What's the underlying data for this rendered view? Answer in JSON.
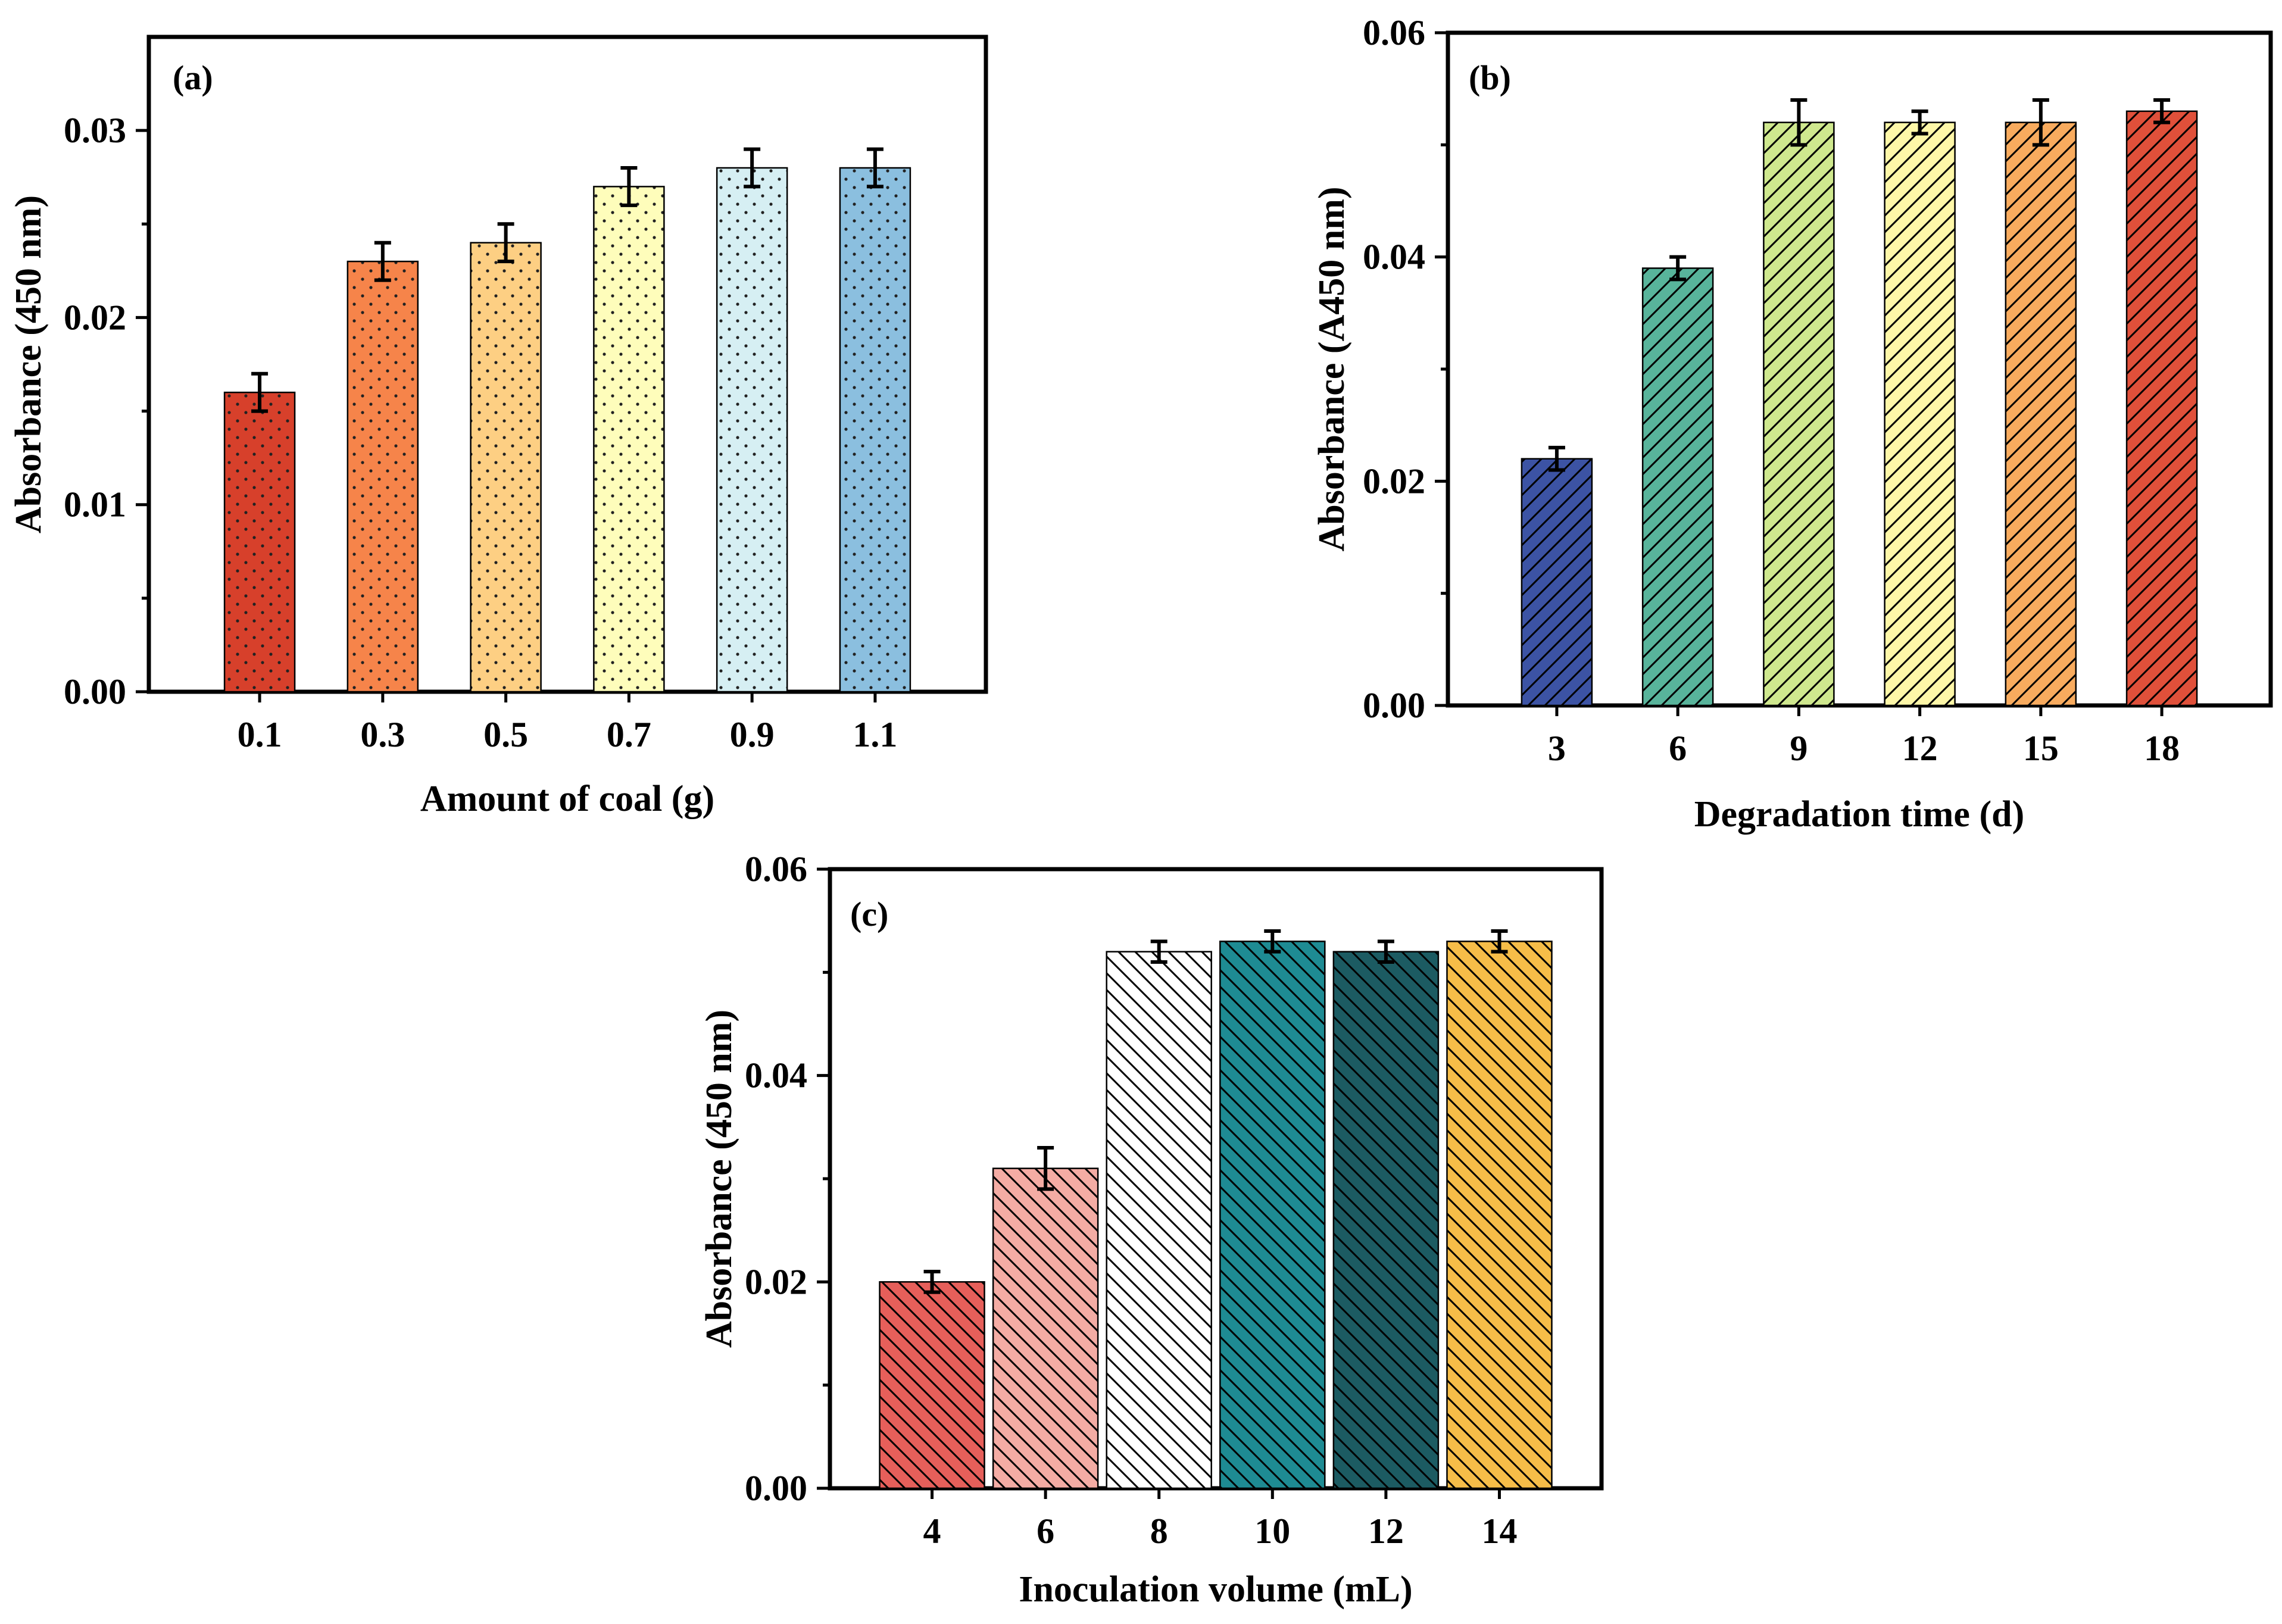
{
  "figure": {
    "charts": [
      {
        "id": "a",
        "panel_label": "(a)",
        "pattern": "dots",
        "xlabel": "Amount of coal (g)",
        "ylabel": "Absorbance (450 nm)"
      },
      {
        "id": "b",
        "panel_label": "(b)",
        "pattern": "hatch",
        "xlabel": "Degradation time (d)",
        "ylabel": "Absorbance (A450 nm)"
      },
      {
        "id": "c",
        "panel_label": "(c)",
        "pattern": "hatch-back",
        "xlabel": "Inoculation volume (mL)",
        "ylabel": "Absorbance (450 nm)"
      }
    ]
  },
  "chart_data": [
    {
      "type": "bar",
      "title": "(a)",
      "xlabel": "Amount of coal (g)",
      "ylabel": "Absorbance (450 nm)",
      "categories": [
        "0.1",
        "0.3",
        "0.5",
        "0.7",
        "0.9",
        "1.1"
      ],
      "values": [
        0.016,
        0.023,
        0.024,
        0.027,
        0.028,
        0.028
      ],
      "errors": [
        0.001,
        0.001,
        0.001,
        0.001,
        0.001,
        0.001
      ],
      "colors": [
        "#d7402b",
        "#f6844a",
        "#fdcf83",
        "#fefdbb",
        "#d6eff3",
        "#8bbfdf"
      ],
      "ylim": [
        0,
        0.035
      ],
      "yticks": [
        0.0,
        0.01,
        0.02,
        0.03
      ],
      "ytick_labels": [
        "0.00",
        "0.01",
        "0.02",
        "0.03"
      ],
      "minor_yticks": [
        0.005,
        0.015,
        0.025
      ]
    },
    {
      "type": "bar",
      "title": "(b)",
      "xlabel": "Degradation time (d)",
      "ylabel": "Absorbance (A450 nm)",
      "categories": [
        "3",
        "6",
        "9",
        "12",
        "15",
        "18"
      ],
      "values": [
        0.022,
        0.039,
        0.052,
        0.052,
        0.052,
        0.053
      ],
      "errors": [
        0.001,
        0.001,
        0.002,
        0.001,
        0.002,
        0.001
      ],
      "colors": [
        "#3c53a4",
        "#58b49b",
        "#cfe88e",
        "#fef7a8",
        "#f8ab5e",
        "#e0503a"
      ],
      "ylim": [
        0,
        0.06
      ],
      "yticks": [
        0.0,
        0.02,
        0.04,
        0.06
      ],
      "ytick_labels": [
        "0.00",
        "0.02",
        "0.04",
        "0.06"
      ],
      "minor_yticks": [
        0.01,
        0.03,
        0.05
      ]
    },
    {
      "type": "bar",
      "title": "(c)",
      "xlabel": "Inoculation volume (mL)",
      "ylabel": "Absorbance (450 nm)",
      "categories": [
        "4",
        "6",
        "8",
        "10",
        "12",
        "14"
      ],
      "values": [
        0.02,
        0.031,
        0.052,
        0.053,
        0.052,
        0.053
      ],
      "errors": [
        0.001,
        0.002,
        0.001,
        0.001,
        0.001,
        0.001
      ],
      "colors": [
        "#e65f5a",
        "#f4aca4",
        "#ffffff",
        "#1e8b93",
        "#1c5b62",
        "#f6bd48"
      ],
      "ylim": [
        0,
        0.06
      ],
      "yticks": [
        0.0,
        0.02,
        0.04,
        0.06
      ],
      "ytick_labels": [
        "0.00",
        "0.02",
        "0.04",
        "0.06"
      ],
      "minor_yticks": [
        0.01,
        0.03,
        0.05
      ]
    }
  ]
}
